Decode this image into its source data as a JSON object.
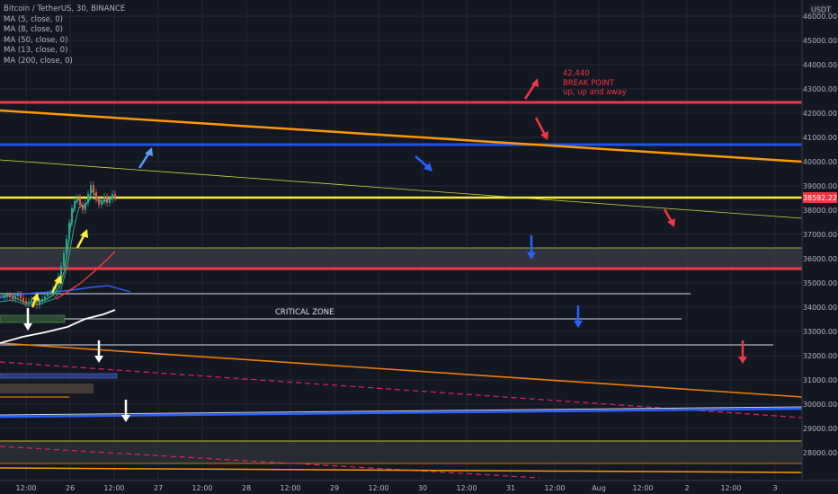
{
  "header": {
    "symbol_line": "Bitcoin / TetherUS, 30, BINANCE",
    "indicators": [
      "MA (5, close, 0)",
      "MA (8, close, 0)",
      "MA (50, close, 0)",
      "MA (13, close, 0)",
      "MA (200, close, 0)"
    ]
  },
  "price_axis": {
    "currency": "USDT",
    "ticks": [
      "46000.00",
      "45000.00",
      "44000.00",
      "43000.00",
      "42000.00",
      "41000.00",
      "40000.00",
      "39000.00",
      "38000.00",
      "37000.00",
      "36000.00",
      "35000.00",
      "34000.00",
      "33000.00",
      "32000.00",
      "31000.00",
      "30000.00",
      "29000.00",
      "28000.00"
    ],
    "current_price": "38592.22",
    "current_price_color": "#f23645"
  },
  "time_axis": {
    "ticks": [
      "12:00",
      "26",
      "12:00",
      "27",
      "12:00",
      "28",
      "12:00",
      "29",
      "12:00",
      "30",
      "12:00",
      "31",
      "12:00",
      "Aug",
      "12:00",
      "2",
      "12:00",
      "3"
    ]
  },
  "annotations": {
    "break_point_value": "42,440",
    "break_point_title": "BREAK POINT",
    "break_point_sub": "up, up and away",
    "critical_zone": "CRITICAL ZONE"
  },
  "colors": {
    "background": "#131722",
    "grid": "#2a2e39",
    "red_line": "#f23645",
    "blue_line": "#1e53e5",
    "yellow_line": "#ffeb3b",
    "orange_line": "#ff9800",
    "white_line": "#d1d4dc"
  }
}
